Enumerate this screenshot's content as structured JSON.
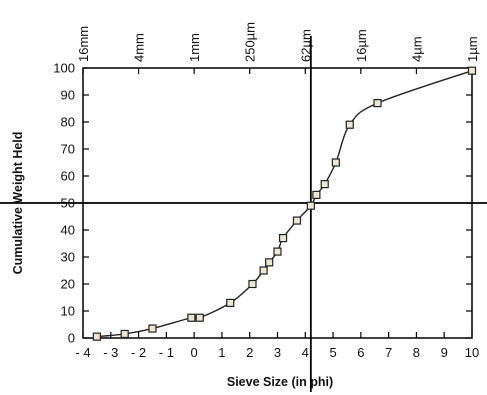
{
  "chart_data": {
    "type": "line",
    "xlabel": "Sieve Size (in phi)",
    "ylabel": "Cumulative Weight Held",
    "xlim": [
      -4,
      10
    ],
    "ylim": [
      0,
      100
    ],
    "x_ticks": [
      "- 4",
      "- 3",
      "- 2",
      "- 1",
      "0",
      "1",
      "2",
      "3",
      "4",
      "5",
      "6",
      "7",
      "8",
      "9",
      "10"
    ],
    "x_tick_values": [
      -4,
      -3,
      -2,
      -1,
      0,
      1,
      2,
      3,
      4,
      5,
      6,
      7,
      8,
      9,
      10
    ],
    "y_ticks": [
      0,
      10,
      20,
      30,
      40,
      50,
      60,
      70,
      80,
      90,
      100
    ],
    "top_axis": {
      "labels": [
        "16mm",
        "4mm",
        "1mm",
        "250µm",
        "62µm",
        "16µm",
        "4µm",
        "1µm"
      ],
      "phi_positions": [
        -4,
        -2,
        0,
        2,
        4,
        6,
        8,
        10
      ]
    },
    "grid": false,
    "series": [
      {
        "marker": "open-square",
        "x": [
          -3.5,
          -2.5,
          -1.5,
          -0.1,
          0.2,
          1.3,
          2.1,
          2.5,
          2.7,
          3.0,
          3.2,
          3.7,
          4.2,
          4.4,
          4.7,
          5.1,
          5.6,
          6.6,
          10.0
        ],
        "values": [
          0.5,
          1.5,
          3.5,
          7.5,
          7.5,
          13,
          20,
          25,
          28,
          32,
          37,
          43.5,
          49,
          53,
          57,
          65,
          79,
          87,
          99
        ]
      }
    ],
    "reference_lines": {
      "horizontal_y": 50,
      "vertical_x": 4.2
    },
    "colors": {
      "line": "#222222",
      "marker_fill": "#ece6d2",
      "reference": "#000000"
    }
  }
}
